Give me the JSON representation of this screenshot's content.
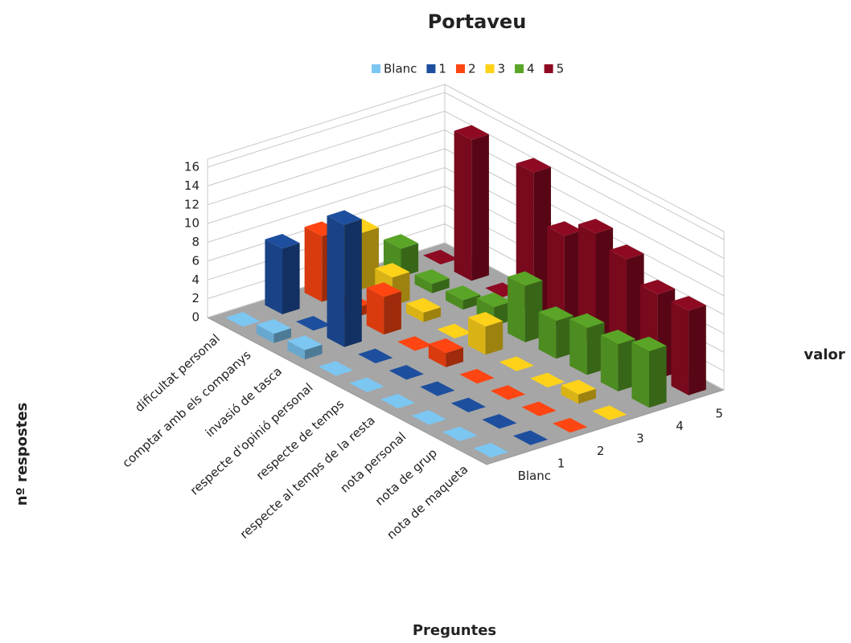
{
  "chart_data": {
    "type": "bar3d",
    "title": "Portaveu",
    "y_axis_label": "nº respostes",
    "x_axis_label": "Preguntes",
    "z_axis_label": "valor",
    "categories": [
      "dificultat personal",
      "comptar amb els companys",
      "invasió de tasca",
      "respecte d'opinió personal",
      "respecte de temps",
      "respecte al temps de la resta",
      "nota personal",
      "nota de grup",
      "nota de maqueta"
    ],
    "series": [
      {
        "name": "Blanc",
        "color": "#7cc6f2",
        "values": [
          0,
          1,
          1,
          0,
          0,
          0,
          0,
          0,
          0
        ]
      },
      {
        "name": "1",
        "color": "#1d4f9e",
        "values": [
          7,
          0,
          13,
          0,
          0,
          0,
          0,
          0,
          0
        ]
      },
      {
        "name": "2",
        "color": "#ff4512",
        "values": [
          7,
          1,
          4,
          0,
          1.5,
          0,
          0,
          0,
          0
        ]
      },
      {
        "name": "3",
        "color": "#ffd21a",
        "values": [
          6,
          3,
          1,
          0,
          3,
          0,
          0,
          1,
          0
        ]
      },
      {
        "name": "4",
        "color": "#5aa527",
        "values": [
          3,
          1,
          1,
          2,
          6,
          4,
          5,
          5,
          6
        ]
      },
      {
        "name": "5",
        "color": "#8e0a22",
        "values": [
          0,
          15,
          0,
          15,
          10,
          12,
          11,
          9,
          9
        ]
      }
    ],
    "ylim": [
      0,
      16
    ],
    "yticks": [
      0,
      2,
      4,
      6,
      8,
      10,
      12,
      14,
      16
    ],
    "grid": true,
    "legend": "top"
  }
}
